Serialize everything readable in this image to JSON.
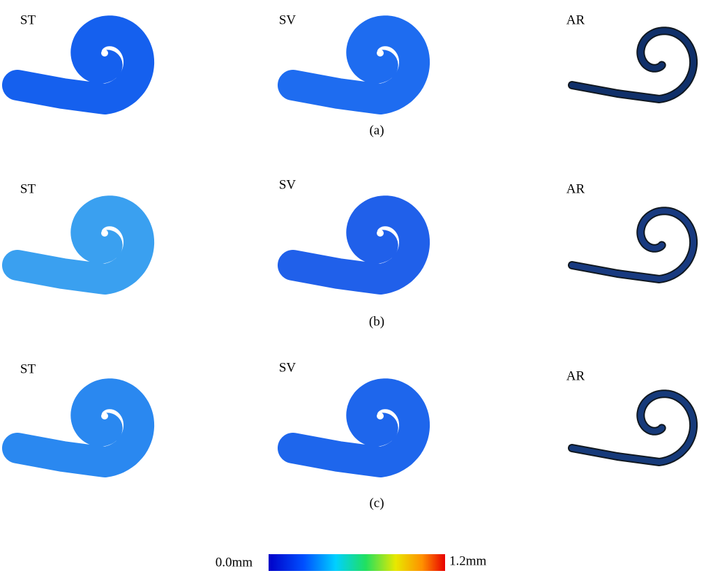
{
  "rows": [
    {
      "caption": "(a)",
      "panels": [
        "ST",
        "SV",
        "AR"
      ]
    },
    {
      "caption": "(b)",
      "panels": [
        "ST",
        "SV",
        "AR"
      ]
    },
    {
      "caption": "(c)",
      "panels": [
        "ST",
        "SV",
        "AR"
      ]
    }
  ],
  "colorbar": {
    "min_label": "0.0mm",
    "max_label": "1.2mm"
  }
}
